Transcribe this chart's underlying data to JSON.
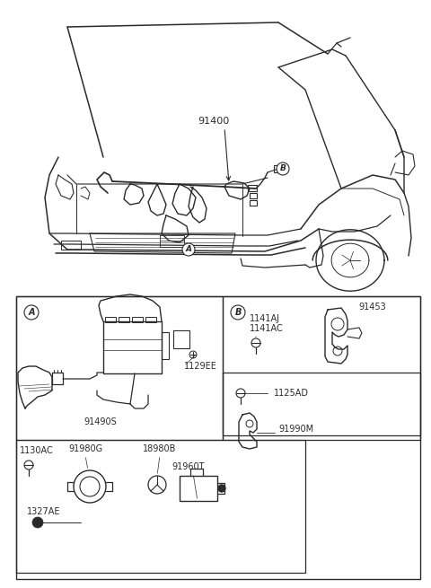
{
  "bg_color": "#ffffff",
  "line_color": "#2a2a2a",
  "figsize": [
    4.8,
    6.55
  ],
  "dpi": 100,
  "car_label": "91400",
  "label_A": "A",
  "label_B": "B"
}
